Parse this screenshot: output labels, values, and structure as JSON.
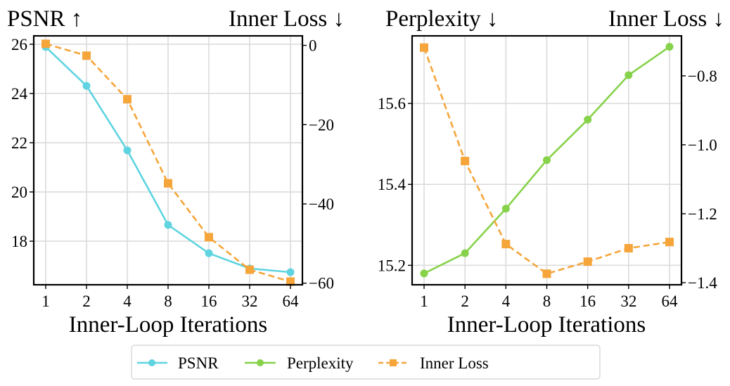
{
  "chart_data": [
    {
      "type": "line",
      "name": "psnr-panel",
      "title_left": "PSNR ↑",
      "title_right": "Inner Loss ↓",
      "xlabel": "Inner-Loop Iterations",
      "x": [
        1,
        2,
        4,
        8,
        16,
        32,
        64
      ],
      "x_tick_labels": [
        "1",
        "2",
        "4",
        "8",
        "16",
        "32",
        "64"
      ],
      "x_scale": "log2",
      "grid": true,
      "y_left": {
        "label": "PSNR",
        "ylim": [
          16.23,
          26.34
        ],
        "ticks": [
          18,
          20,
          22,
          24,
          26
        ],
        "tick_labels": [
          "18",
          "20",
          "22",
          "24",
          "26"
        ]
      },
      "y_right": {
        "label": "Inner Loss",
        "ylim": [
          -60.4,
          2.4
        ],
        "ticks": [
          0,
          -20,
          -40,
          -60
        ],
        "tick_labels": [
          "0",
          "−20",
          "−40",
          "−60"
        ]
      },
      "series": [
        {
          "name": "PSNR",
          "axis": "left",
          "color": "#5fd4e0",
          "marker": "circle",
          "linestyle": "solid",
          "values": [
            25.89,
            24.31,
            21.69,
            18.66,
            17.51,
            16.89,
            16.74
          ]
        },
        {
          "name": "Inner Loss",
          "axis": "right",
          "color": "#f5a53a",
          "marker": "square",
          "linestyle": "dashed",
          "values": [
            0.4,
            -2.6,
            -13.6,
            -34.8,
            -48.4,
            -56.6,
            -59.6
          ]
        }
      ]
    },
    {
      "type": "line",
      "name": "perplexity-panel",
      "title_left": "Perplexity ↓",
      "title_right": "Inner Loss ↓",
      "xlabel": "Inner-Loop Iterations",
      "x": [
        1,
        2,
        4,
        8,
        16,
        32,
        64
      ],
      "x_tick_labels": [
        "1",
        "2",
        "4",
        "8",
        "16",
        "32",
        "64"
      ],
      "x_scale": "log2",
      "grid": true,
      "y_left": {
        "label": "Perplexity",
        "ylim": [
          15.152,
          15.767
        ],
        "ticks": [
          15.2,
          15.4,
          15.6
        ],
        "tick_labels": [
          "15.2",
          "15.4",
          "15.6"
        ]
      },
      "y_right": {
        "label": "Inner Loss",
        "ylim": [
          -1.406,
          -0.684
        ],
        "ticks": [
          -0.8,
          -1.0,
          -1.2,
          -1.4
        ],
        "tick_labels": [
          "−0.8",
          "−1.0",
          "−1.2",
          "−1.4"
        ]
      },
      "series": [
        {
          "name": "Perplexity",
          "axis": "left",
          "color": "#86d24a",
          "marker": "circle",
          "linestyle": "solid",
          "values": [
            15.18,
            15.23,
            15.34,
            15.46,
            15.56,
            15.67,
            15.74
          ]
        },
        {
          "name": "Inner Loss",
          "axis": "right",
          "color": "#f5a53a",
          "marker": "square",
          "linestyle": "dashed",
          "values": [
            -0.718,
            -1.047,
            -1.288,
            -1.374,
            -1.339,
            -1.3,
            -1.282
          ]
        }
      ]
    }
  ],
  "legend": {
    "placement": "bottom-center",
    "items": [
      {
        "label": "PSNR",
        "color": "#5fd4e0",
        "marker": "circle",
        "linestyle": "solid"
      },
      {
        "label": "Perplexity",
        "color": "#86d24a",
        "marker": "circle",
        "linestyle": "solid"
      },
      {
        "label": "Inner Loss",
        "color": "#f5a53a",
        "marker": "square",
        "linestyle": "dashed"
      }
    ]
  }
}
